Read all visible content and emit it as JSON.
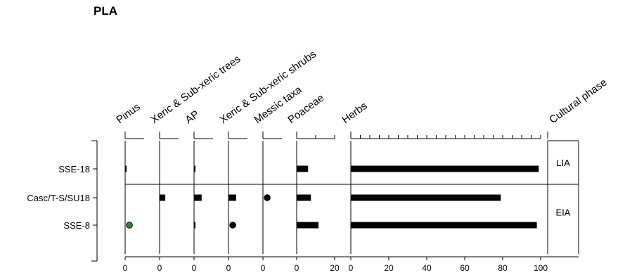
{
  "chart_data": {
    "type": "bar",
    "title": "PLA",
    "samples": [
      "SSE-18",
      "Casc/T-S/SU18",
      "SSE-8"
    ],
    "panels": [
      {
        "name": "Pinus",
        "values": [
          0.2,
          0,
          1.5
        ],
        "marker": [
          false,
          false,
          true
        ]
      },
      {
        "name": "Xeric & Sub-xeric trees",
        "values": [
          0,
          3,
          0
        ],
        "marker": [
          false,
          false,
          false
        ]
      },
      {
        "name": "AP",
        "values": [
          0.5,
          4,
          0.4
        ],
        "marker": [
          false,
          false,
          false
        ]
      },
      {
        "name": "Xeric & Sub-xeric shrubs",
        "values": [
          0,
          4,
          1.5
        ],
        "marker": [
          false,
          false,
          true
        ]
      },
      {
        "name": "Messic taxa",
        "values": [
          0,
          1.5,
          0
        ],
        "marker": [
          false,
          true,
          false
        ]
      },
      {
        "name": "Poaceae",
        "values": [
          6,
          7.5,
          11.5
        ],
        "marker": [
          false,
          false,
          false
        ]
      },
      {
        "name": "Herbs",
        "values": [
          99,
          79,
          98
        ],
        "marker": [
          false,
          false,
          false
        ]
      }
    ],
    "small_axis_ticks": [
      "0"
    ],
    "poaceae_ticks": [
      "0",
      "20"
    ],
    "herbs_ticks": [
      "0",
      "20",
      "40",
      "60",
      "80",
      "100"
    ],
    "cultural_phase": {
      "label": "Cultural phase",
      "phases": [
        "LIA",
        "EIA"
      ]
    },
    "marker_color": "#2e8b3e",
    "bar_color": "#000000"
  }
}
